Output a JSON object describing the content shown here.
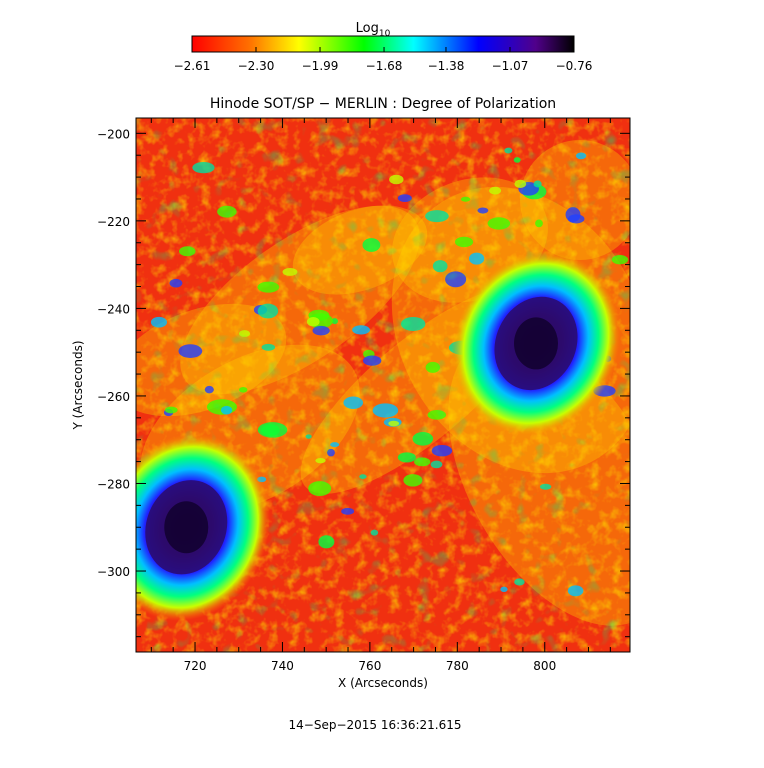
{
  "chart_data": {
    "type": "heatmap",
    "title": "Hinode SOT/SP − MERLIN : Degree of Polarization",
    "xlabel": "X (Arcseconds)",
    "ylabel": "Y (Arcseconds)",
    "timestamp": "14−Sep−2015 16:36:21.615",
    "xlim": [
      706.5,
      819.5
    ],
    "ylim": [
      -318.5,
      -196.5
    ],
    "x_ticks": [
      720,
      740,
      760,
      780,
      800
    ],
    "x_tick_labels": [
      "720",
      "740",
      "760",
      "780",
      "800"
    ],
    "y_ticks": [
      -200,
      -220,
      -240,
      -260,
      -280,
      -300
    ],
    "y_tick_labels": [
      "−200",
      "−220",
      "−240",
      "−260",
      "−280",
      "−300"
    ],
    "colorbar": {
      "label_base": "Log",
      "label_sub": "10",
      "range": [
        -2.61,
        -0.76
      ],
      "ticks": [
        -2.61,
        -2.3,
        -1.99,
        -1.68,
        -1.38,
        -1.07,
        -0.76
      ],
      "tick_labels": [
        "−2.61",
        "−2.30",
        "−1.99",
        "−1.68",
        "−1.38",
        "−1.07",
        "−0.76"
      ],
      "colormap": [
        "#ff0000",
        "#ff8000",
        "#ffff00",
        "#00ff00",
        "#00ffff",
        "#0000ff",
        "#400080",
        "#000000"
      ]
    },
    "features": [
      {
        "name": "sunspot",
        "x": 718,
        "y": -290,
        "peak_log10": -0.76
      },
      {
        "name": "sunspot",
        "x": 798,
        "y": -248,
        "peak_log10": -0.76
      }
    ],
    "grid": false
  }
}
